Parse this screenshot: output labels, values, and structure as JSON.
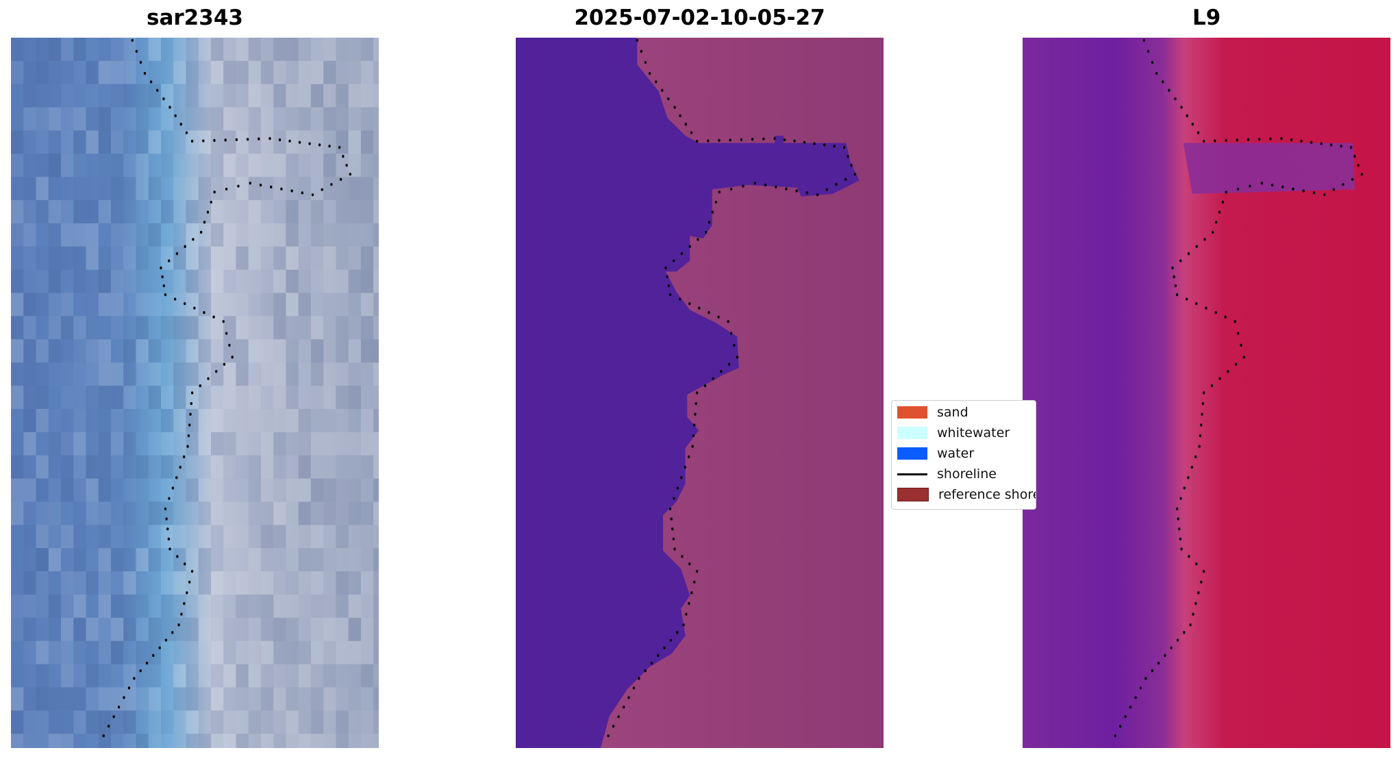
{
  "panels": [
    {
      "title": "sar2343"
    },
    {
      "title": "2025-07-02-10-05-27"
    },
    {
      "title": "L9"
    }
  ],
  "legend": {
    "items": [
      {
        "label": "sand",
        "color": "#e0512f",
        "kind": "patch"
      },
      {
        "label": "whitewater",
        "color": "#ccffff",
        "kind": "patch"
      },
      {
        "label": "water",
        "color": "#0a5cff",
        "kind": "patch"
      },
      {
        "label": "shoreline",
        "color": "#000000",
        "kind": "line"
      },
      {
        "label": "reference shoreline",
        "color": "#9b3030",
        "kind": "patch"
      }
    ]
  },
  "colors": {
    "classified_water": "#52229a",
    "shoreline_dots": "#000000"
  }
}
